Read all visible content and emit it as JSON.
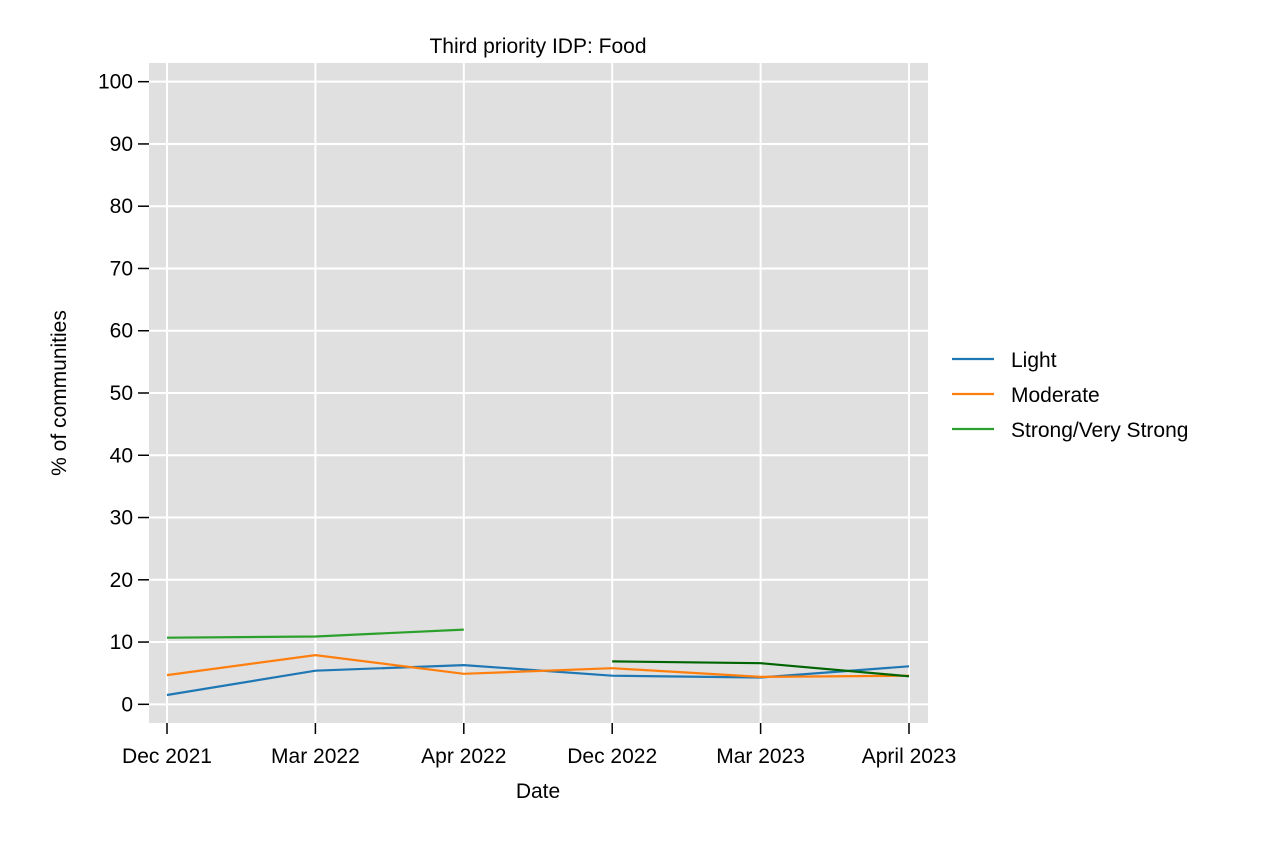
{
  "chart_data": {
    "type": "line",
    "title": "Third priority IDP: Food",
    "xlabel": "Date",
    "ylabel": "% of communities",
    "categories": [
      "Dec 2021",
      "Mar 2022",
      "Apr 2022",
      "Dec 2022",
      "Mar 2023",
      "April 2023"
    ],
    "ylim": [
      -3,
      103
    ],
    "yticks": [
      0,
      10,
      20,
      30,
      40,
      50,
      60,
      70,
      80,
      90,
      100
    ],
    "grid": true,
    "legend_position": "right",
    "background_color": "#e0e0e0",
    "grid_color": "#ffffff",
    "series": [
      {
        "name": "Light",
        "color": "#1f77b4",
        "values": [
          1.5,
          5.4,
          6.3,
          4.6,
          4.3,
          6.1
        ]
      },
      {
        "name": "Moderate",
        "color": "#ff7f0e",
        "values": [
          4.7,
          7.9,
          4.9,
          5.8,
          4.4,
          4.6
        ]
      },
      {
        "name": "Strong/Very Strong",
        "color": "#2ca02c",
        "values": [
          10.7,
          10.9,
          12.0,
          null,
          null,
          null
        ]
      }
    ],
    "extra_lines": [
      {
        "color": "#006400",
        "values": [
          null,
          null,
          null,
          6.9,
          6.6,
          4.5
        ]
      }
    ]
  }
}
